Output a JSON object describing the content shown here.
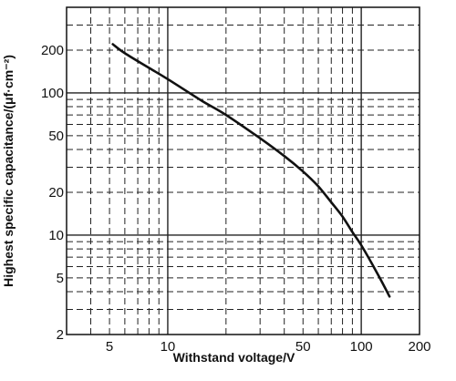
{
  "chart_data": {
    "type": "line",
    "title": "",
    "xlabel": "Withstand voltage/V",
    "ylabel": "Highest specific capacitance/(μf·cm⁻²)",
    "xscale": "log",
    "yscale": "log",
    "xlim": [
      3,
      200
    ],
    "ylim": [
      2,
      400
    ],
    "grid": true,
    "x_ticks": [
      5,
      10,
      50,
      100,
      200
    ],
    "y_ticks": [
      2,
      5,
      10,
      20,
      50,
      100,
      200
    ],
    "series": [
      {
        "x": [
          5.2,
          6,
          8,
          10,
          15,
          20,
          30,
          40,
          50,
          60,
          70,
          80,
          90,
          100,
          120,
          140
        ],
        "y": [
          220,
          190,
          150,
          125,
          88,
          70,
          48,
          36,
          28,
          22,
          17,
          13.5,
          10.5,
          8.5,
          5.5,
          3.7
        ]
      }
    ]
  }
}
